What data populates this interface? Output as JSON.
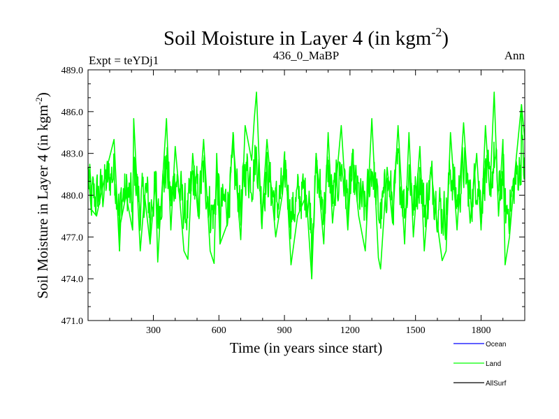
{
  "chart_data": {
    "type": "line",
    "title_main": "Soil Moisture in Layer 4 (in kgm",
    "title_sup": "-2",
    "title_close": ")",
    "subtitle_left": "Expt = teYDj1",
    "subtitle_center": "436_0_MaBP",
    "subtitle_right": "Ann",
    "xlabel": "Time (in years since start)",
    "ylabel_main": "Soil Moisture in Layer 4 (in kgm",
    "ylabel_sup": "-2",
    "ylabel_close": ")",
    "xlim": [
      1,
      2000
    ],
    "ylim": [
      471.0,
      489.0
    ],
    "xticks": [
      300,
      600,
      900,
      1200,
      1500,
      1800
    ],
    "yticks": [
      471.0,
      474.0,
      477.0,
      480.0,
      483.0,
      486.0,
      489.0
    ],
    "ytick_labels": [
      "471.0",
      "474.0",
      "477.0",
      "480.0",
      "483.0",
      "486.0",
      "489.0"
    ],
    "grid": false,
    "legend_position": "bottom-right",
    "legend": [
      {
        "name": "Ocean",
        "color": "#0000ff"
      },
      {
        "name": "Land",
        "color": "#00ff00"
      },
      {
        "name": "AllSurf",
        "color": "#000000"
      }
    ],
    "series": [
      {
        "name": "Land",
        "color": "#00ff00",
        "mean": 480.5,
        "amplitude": 2.0,
        "n_points": 2000,
        "min_value": 474.0,
        "max_value": 487.4,
        "x": [
          0,
          1,
          15,
          40,
          80,
          120,
          145,
          150,
          175,
          205,
          210,
          240,
          260,
          285,
          310,
          320,
          330,
          360,
          380,
          400,
          430,
          440,
          458,
          480,
          505,
          530,
          560,
          578,
          590,
          605,
          640,
          665,
          670,
          700,
          720,
          750,
          762,
          772,
          795,
          820,
          860,
          890,
          905,
          930,
          960,
          1000,
          1025,
          1045,
          1080,
          1100,
          1120,
          1160,
          1190,
          1210,
          1240,
          1270,
          1300,
          1330,
          1340,
          1370,
          1395,
          1420,
          1450,
          1470,
          1490,
          1520,
          1540,
          1570,
          1595,
          1622,
          1640,
          1660,
          1690,
          1720,
          1750,
          1780,
          1800,
          1820,
          1840,
          1860,
          1880,
          1900,
          1910,
          1930,
          1960,
          1985,
          2000
        ],
        "y": [
          484.5,
          482.0,
          479.0,
          478.5,
          481.5,
          484.0,
          476.0,
          478.0,
          480.0,
          477.5,
          485.5,
          476.0,
          480.0,
          476.5,
          481.0,
          475.2,
          478.0,
          485.5,
          477.5,
          483.5,
          478.0,
          476.0,
          475.4,
          483.0,
          478.5,
          484.0,
          476.0,
          475.1,
          483.0,
          476.5,
          478.0,
          484.5,
          483.0,
          476.8,
          485.0,
          482.5,
          485.5,
          487.4,
          478.0,
          484.0,
          477.0,
          480.0,
          482.5,
          475.0,
          478.5,
          480.0,
          474.0,
          483.0,
          476.5,
          484.5,
          478.0,
          485.0,
          477.5,
          483.0,
          478.5,
          476.0,
          485.5,
          475.5,
          474.7,
          482.0,
          478.0,
          485.0,
          476.5,
          484.5,
          477.0,
          483.5,
          476.0,
          482.0,
          478.5,
          475.3,
          476.0,
          484.5,
          477.5,
          485.2,
          478.0,
          483.0,
          477.5,
          485.0,
          480.0,
          487.4,
          478.5,
          484.0,
          475.0,
          477.0,
          482.5,
          486.5,
          484.0
        ]
      }
    ]
  }
}
